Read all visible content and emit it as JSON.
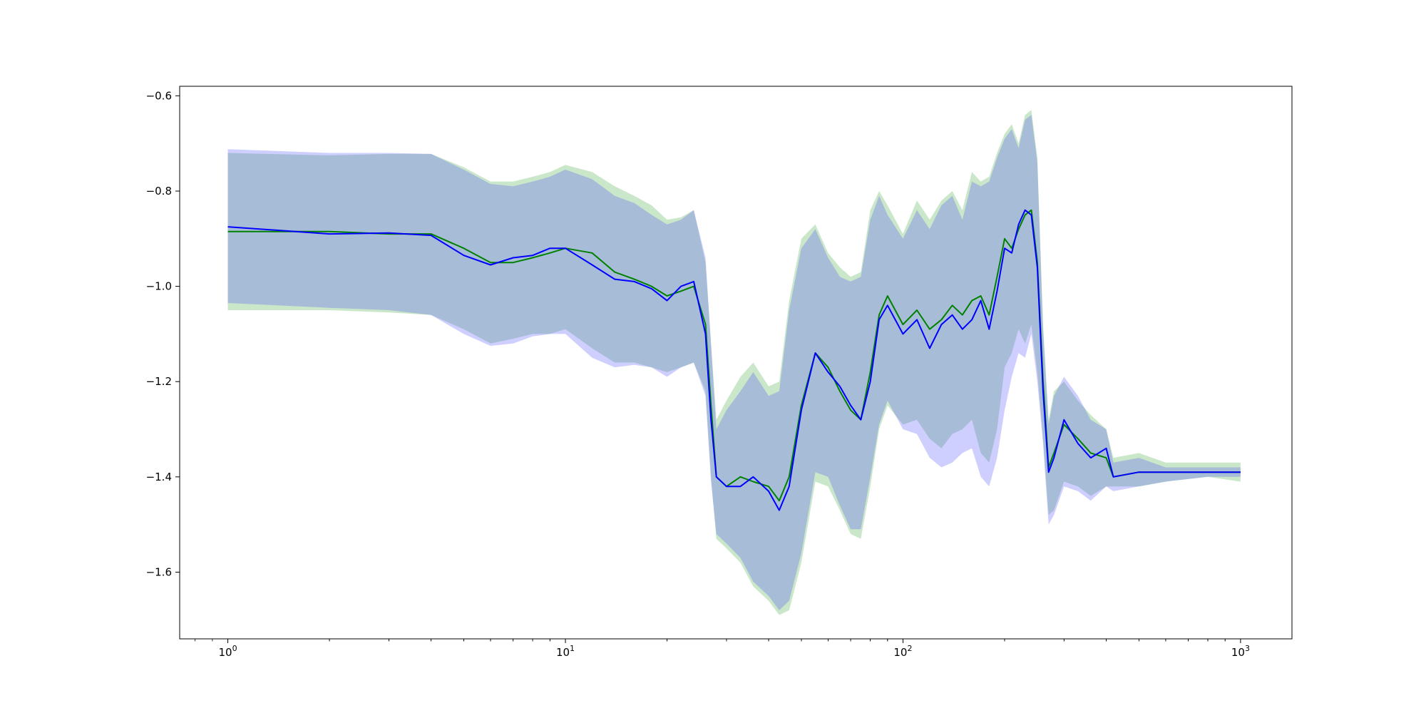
{
  "chart_data": {
    "type": "line",
    "title": "",
    "xlabel": "",
    "ylabel": "",
    "x_scale": "log",
    "xlim": [
      0.72,
      1420
    ],
    "ylim": [
      -1.74,
      -0.58
    ],
    "grid": false,
    "legend": "none",
    "x_ticks": [
      {
        "base": "10",
        "exp": "0",
        "value": 1
      },
      {
        "base": "10",
        "exp": "1",
        "value": 10
      },
      {
        "base": "10",
        "exp": "2",
        "value": 100
      },
      {
        "base": "10",
        "exp": "3",
        "value": 1000
      }
    ],
    "y_ticks": [
      {
        "label": "−0.6",
        "value": -0.6
      },
      {
        "label": "−0.8",
        "value": -0.8
      },
      {
        "label": "−1.0",
        "value": -1.0
      },
      {
        "label": "−1.2",
        "value": -1.2
      },
      {
        "label": "−1.4",
        "value": -1.4
      },
      {
        "label": "−1.6",
        "value": -1.6
      }
    ],
    "series": [
      {
        "color": "#008000",
        "band_color": "#2ca02c",
        "band_opacity": 0.25,
        "x": [
          1,
          2,
          3,
          4,
          5,
          6,
          7,
          8,
          9,
          10,
          12,
          14,
          16,
          18,
          20,
          22,
          24,
          26,
          27,
          28,
          30,
          33,
          36,
          40,
          43,
          46,
          50,
          55,
          60,
          65,
          70,
          75,
          80,
          85,
          90,
          100,
          110,
          120,
          130,
          140,
          150,
          160,
          170,
          180,
          190,
          200,
          210,
          220,
          230,
          240,
          250,
          260,
          270,
          280,
          300,
          330,
          360,
          400,
          420,
          500,
          600,
          800,
          1000
        ],
        "y": [
          -0.885,
          -0.885,
          -0.89,
          -0.89,
          -0.92,
          -0.95,
          -0.95,
          -0.94,
          -0.93,
          -0.92,
          -0.93,
          -0.97,
          -0.985,
          -1.0,
          -1.02,
          -1.01,
          -1.0,
          -1.08,
          -1.25,
          -1.4,
          -1.42,
          -1.4,
          -1.41,
          -1.42,
          -1.45,
          -1.4,
          -1.25,
          -1.14,
          -1.17,
          -1.22,
          -1.26,
          -1.28,
          -1.18,
          -1.06,
          -1.02,
          -1.08,
          -1.05,
          -1.09,
          -1.07,
          -1.04,
          -1.06,
          -1.03,
          -1.02,
          -1.06,
          -0.98,
          -0.9,
          -0.92,
          -0.88,
          -0.85,
          -0.84,
          -0.95,
          -1.2,
          -1.38,
          -1.35,
          -1.29,
          -1.32,
          -1.35,
          -1.36,
          -1.4,
          -1.39,
          -1.39,
          -1.39,
          -1.39
        ],
        "upper": [
          -0.72,
          -0.725,
          -0.722,
          -0.722,
          -0.75,
          -0.78,
          -0.78,
          -0.77,
          -0.76,
          -0.745,
          -0.76,
          -0.79,
          -0.81,
          -0.83,
          -0.86,
          -0.855,
          -0.84,
          -0.95,
          -1.12,
          -1.28,
          -1.24,
          -1.19,
          -1.16,
          -1.21,
          -1.2,
          -1.03,
          -0.9,
          -0.87,
          -0.93,
          -0.96,
          -0.98,
          -0.97,
          -0.84,
          -0.8,
          -0.83,
          -0.89,
          -0.82,
          -0.86,
          -0.82,
          -0.8,
          -0.84,
          -0.76,
          -0.78,
          -0.77,
          -0.72,
          -0.68,
          -0.66,
          -0.7,
          -0.64,
          -0.63,
          -0.73,
          -1.08,
          -1.28,
          -1.22,
          -1.2,
          -1.24,
          -1.27,
          -1.3,
          -1.36,
          -1.35,
          -1.37,
          -1.37,
          -1.37
        ],
        "lower": [
          -1.05,
          -1.05,
          -1.055,
          -1.06,
          -1.09,
          -1.12,
          -1.11,
          -1.1,
          -1.1,
          -1.09,
          -1.13,
          -1.16,
          -1.16,
          -1.17,
          -1.18,
          -1.17,
          -1.16,
          -1.22,
          -1.4,
          -1.53,
          -1.55,
          -1.58,
          -1.63,
          -1.66,
          -1.69,
          -1.68,
          -1.58,
          -1.41,
          -1.42,
          -1.47,
          -1.52,
          -1.53,
          -1.42,
          -1.3,
          -1.25,
          -1.29,
          -1.28,
          -1.32,
          -1.34,
          -1.31,
          -1.3,
          -1.28,
          -1.35,
          -1.37,
          -1.3,
          -1.17,
          -1.14,
          -1.09,
          -1.12,
          -1.08,
          -1.18,
          -1.32,
          -1.48,
          -1.47,
          -1.41,
          -1.42,
          -1.44,
          -1.42,
          -1.42,
          -1.42,
          -1.41,
          -1.4,
          -1.41
        ]
      },
      {
        "color": "#0000ff",
        "band_color": "#4040ff",
        "band_opacity": 0.25,
        "x": [
          1,
          2,
          3,
          4,
          5,
          6,
          7,
          8,
          9,
          10,
          12,
          14,
          16,
          18,
          20,
          22,
          24,
          26,
          27,
          28,
          30,
          33,
          36,
          40,
          43,
          46,
          50,
          55,
          60,
          65,
          70,
          75,
          80,
          85,
          90,
          100,
          110,
          120,
          130,
          140,
          150,
          160,
          170,
          180,
          190,
          200,
          210,
          220,
          230,
          240,
          250,
          260,
          270,
          280,
          300,
          330,
          360,
          400,
          420,
          500,
          600,
          800,
          1000
        ],
        "y": [
          -0.875,
          -0.89,
          -0.888,
          -0.893,
          -0.935,
          -0.955,
          -0.94,
          -0.935,
          -0.92,
          -0.92,
          -0.955,
          -0.985,
          -0.99,
          -1.005,
          -1.03,
          -1.0,
          -0.99,
          -1.1,
          -1.28,
          -1.4,
          -1.42,
          -1.42,
          -1.4,
          -1.43,
          -1.47,
          -1.42,
          -1.26,
          -1.14,
          -1.18,
          -1.21,
          -1.25,
          -1.28,
          -1.2,
          -1.07,
          -1.04,
          -1.1,
          -1.07,
          -1.13,
          -1.08,
          -1.06,
          -1.09,
          -1.07,
          -1.03,
          -1.09,
          -1.01,
          -0.92,
          -0.93,
          -0.87,
          -0.84,
          -0.85,
          -0.96,
          -1.22,
          -1.39,
          -1.36,
          -1.28,
          -1.33,
          -1.36,
          -1.34,
          -1.4,
          -1.39,
          -1.39,
          -1.39,
          -1.39
        ],
        "upper": [
          -0.712,
          -0.72,
          -0.72,
          -0.722,
          -0.755,
          -0.785,
          -0.79,
          -0.78,
          -0.77,
          -0.755,
          -0.775,
          -0.81,
          -0.825,
          -0.85,
          -0.87,
          -0.86,
          -0.84,
          -0.94,
          -1.12,
          -1.3,
          -1.26,
          -1.22,
          -1.18,
          -1.23,
          -1.22,
          -1.05,
          -0.92,
          -0.88,
          -0.94,
          -0.98,
          -0.99,
          -0.98,
          -0.86,
          -0.81,
          -0.85,
          -0.9,
          -0.84,
          -0.88,
          -0.83,
          -0.81,
          -0.86,
          -0.78,
          -0.79,
          -0.78,
          -0.73,
          -0.69,
          -0.67,
          -0.71,
          -0.65,
          -0.64,
          -0.74,
          -1.09,
          -1.29,
          -1.23,
          -1.19,
          -1.23,
          -1.28,
          -1.3,
          -1.37,
          -1.36,
          -1.38,
          -1.38,
          -1.38
        ],
        "lower": [
          -1.035,
          -1.045,
          -1.05,
          -1.06,
          -1.1,
          -1.125,
          -1.12,
          -1.105,
          -1.1,
          -1.1,
          -1.15,
          -1.17,
          -1.165,
          -1.17,
          -1.19,
          -1.17,
          -1.16,
          -1.23,
          -1.41,
          -1.52,
          -1.54,
          -1.57,
          -1.62,
          -1.65,
          -1.68,
          -1.66,
          -1.56,
          -1.39,
          -1.4,
          -1.46,
          -1.51,
          -1.51,
          -1.4,
          -1.29,
          -1.24,
          -1.3,
          -1.31,
          -1.36,
          -1.38,
          -1.37,
          -1.35,
          -1.34,
          -1.4,
          -1.42,
          -1.36,
          -1.26,
          -1.19,
          -1.14,
          -1.15,
          -1.1,
          -1.2,
          -1.33,
          -1.5,
          -1.48,
          -1.42,
          -1.43,
          -1.45,
          -1.42,
          -1.43,
          -1.42,
          -1.41,
          -1.4,
          -1.4
        ]
      }
    ]
  }
}
